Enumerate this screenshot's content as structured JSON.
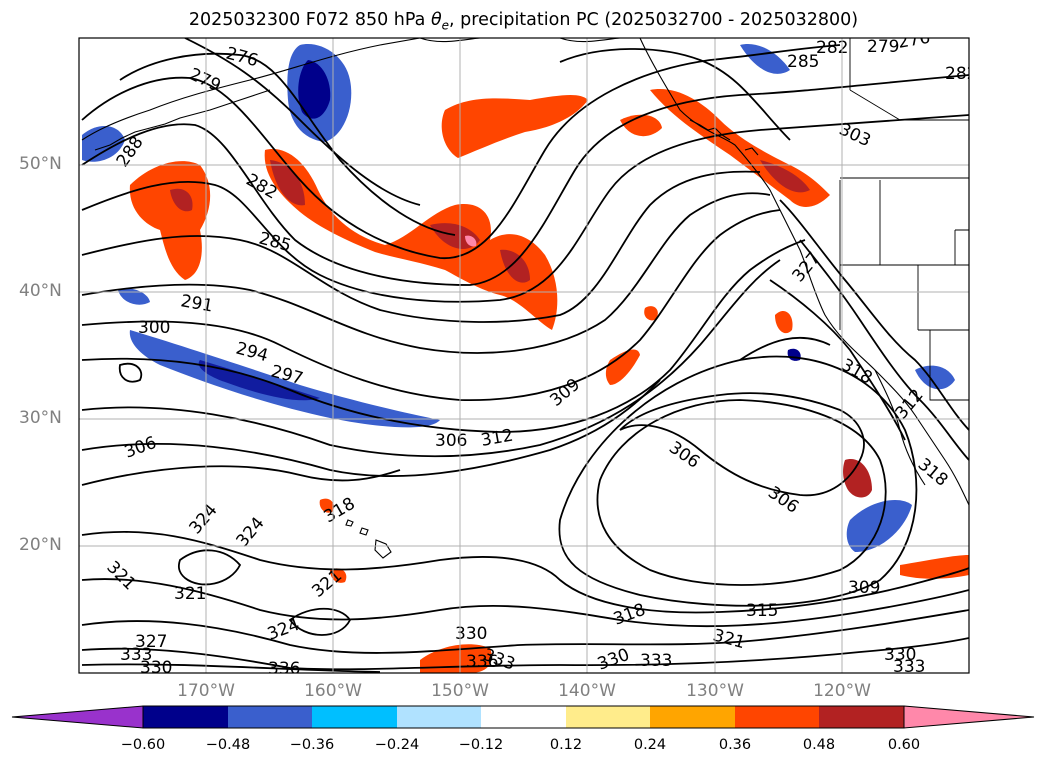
{
  "title": {
    "prefix": "2025032300 F072 850 hPa ",
    "theta": "θ",
    "theta_sub": "e",
    "suffix": ", precipitation PC (2025032700 - 2025032800)"
  },
  "map": {
    "projection": "Plate Carree",
    "lon_range": [
      "180°",
      "110°W"
    ],
    "lat_range": [
      "10°N",
      "60°N"
    ],
    "gridlines": true,
    "lat_labels": [
      "50°N",
      "40°N",
      "30°N",
      "20°N"
    ],
    "lon_labels": [
      "170°W",
      "160°W",
      "150°W",
      "140°W",
      "130°W",
      "120°W"
    ],
    "contour_field": "850 hPa theta-e",
    "contour_labels": [
      "276",
      "279",
      "282",
      "285",
      "288",
      "291",
      "294",
      "297",
      "300",
      "303",
      "306",
      "309",
      "312",
      "315",
      "318",
      "321",
      "324",
      "327",
      "330",
      "333",
      "336"
    ],
    "fill_field": "precipitation PC",
    "colors": {
      "contour": "#000000",
      "coastline": "#000000",
      "grid": "#b0b0b0",
      "fill_pos_strong": "#ff88aa",
      "fill_pos_mid": "#b22222",
      "fill_pos": "#ff4500",
      "fill_neg": "#3a5fcd",
      "fill_neg_strong": "#00008b"
    }
  },
  "colorbar": {
    "ticks": [
      "−0.60",
      "−0.48",
      "−0.36",
      "−0.24",
      "−0.12",
      "0.12",
      "0.24",
      "0.36",
      "0.48",
      "0.60"
    ],
    "colors": [
      "#9932cc",
      "#00008b",
      "#3a5fcd",
      "#00bfff",
      "#b0e2ff",
      "#ffffff",
      "#ffec8b",
      "#ffa500",
      "#ff4500",
      "#b22222",
      "#ff88aa"
    ],
    "extend": "both"
  }
}
